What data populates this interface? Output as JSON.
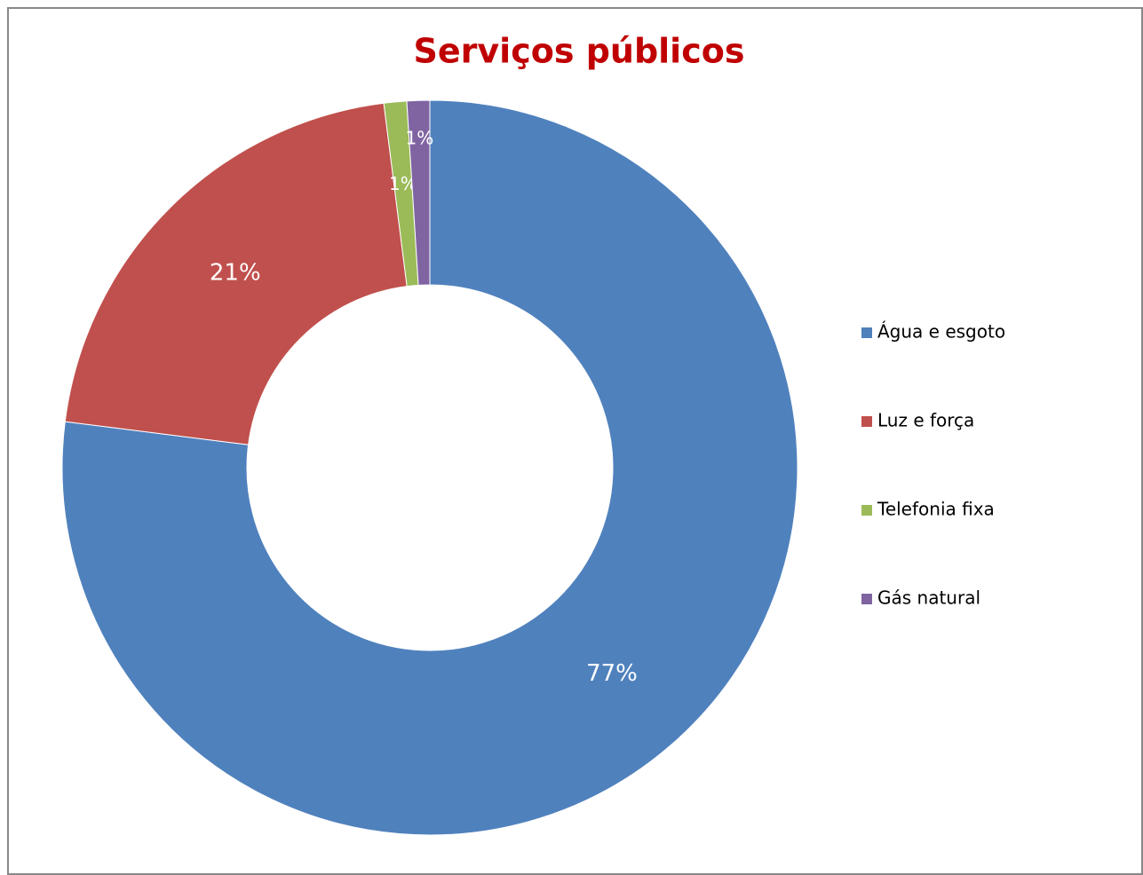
{
  "chart_data": {
    "type": "donut",
    "title": "Serviços públicos",
    "categories": [
      "Água e esgoto",
      "Luz e força",
      "Telefonia fixa",
      "Gás natural"
    ],
    "values": [
      77,
      21,
      1,
      1
    ],
    "value_labels": [
      "77%",
      "21%",
      "1%",
      "1%"
    ],
    "colors": [
      "#4f81bd",
      "#c0504d",
      "#9bbb59",
      "#8064a2"
    ],
    "legend": "right"
  }
}
